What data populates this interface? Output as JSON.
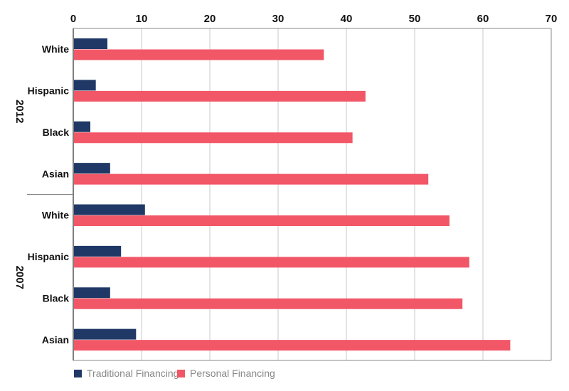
{
  "chart_data": {
    "type": "bar",
    "orientation": "horizontal",
    "x_ticks": [
      "0",
      "10",
      "20",
      "30",
      "40",
      "50",
      "60",
      "70"
    ],
    "xlim": [
      0,
      70
    ],
    "grid": true,
    "legend_position": "bottom-left",
    "groups": [
      {
        "name": "2012",
        "categories": [
          "White",
          "Hispanic",
          "Black",
          "Asian"
        ],
        "series": [
          {
            "name": "Traditional Financing",
            "values": [
              5.0,
              3.3,
              2.5,
              5.4
            ]
          },
          {
            "name": "Personal Financing",
            "values": [
              36.7,
              42.8,
              40.9,
              52.0
            ]
          }
        ]
      },
      {
        "name": "2007",
        "categories": [
          "White",
          "Hispanic",
          "Black",
          "Asian"
        ],
        "series": [
          {
            "name": "Traditional Financing",
            "values": [
              10.5,
              7.0,
              5.4,
              9.2
            ]
          },
          {
            "name": "Personal Financing",
            "values": [
              55.1,
              58.0,
              57.0,
              64.0
            ]
          }
        ]
      }
    ],
    "series_names": [
      "Traditional Financing",
      "Personal Financing"
    ],
    "colors": {
      "Traditional Financing": "#1f3866",
      "Personal Financing": "#f25767"
    }
  }
}
